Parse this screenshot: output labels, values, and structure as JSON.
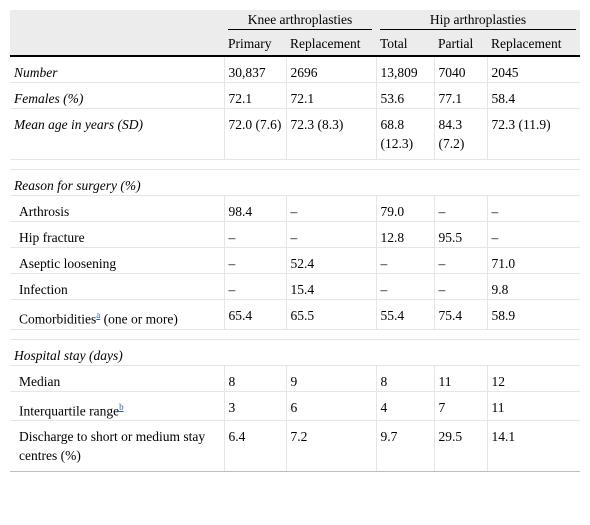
{
  "header": {
    "group_knee": "Knee arthroplasties",
    "group_hip": "Hip arthroplasties",
    "columns": [
      "Primary",
      "Replacement",
      "Total",
      "Partial",
      "Replacement"
    ]
  },
  "rows": [
    {
      "label": "Number",
      "values": [
        "30,837",
        "2696",
        "13,809",
        "7040",
        "2045"
      ]
    },
    {
      "label": "Females (%)",
      "values": [
        "72.1",
        "72.1",
        "53.6",
        "77.1",
        "58.4"
      ]
    },
    {
      "label": "Mean age in years (SD)",
      "values": [
        "72.0 (7.6)",
        "72.3 (8.3)",
        "68.8 (12.3)",
        "84.3 (7.2)",
        "72.3 (11.9)"
      ]
    }
  ],
  "reason_section": {
    "title": "Reason for surgery (%)",
    "rows": [
      {
        "label": "Arthrosis",
        "values": [
          "98.4",
          "–",
          "79.0",
          "–",
          "–"
        ]
      },
      {
        "label": "Hip fracture",
        "values": [
          "–",
          "–",
          "12.8",
          "95.5",
          "–"
        ]
      },
      {
        "label": "Aseptic loosening",
        "values": [
          "–",
          "52.4",
          "–",
          "–",
          "71.0"
        ]
      },
      {
        "label": "Infection",
        "values": [
          "–",
          "15.4",
          "–",
          "–",
          "9.8"
        ]
      },
      {
        "label": "Comorbidities",
        "footnote": "a",
        "label_suffix": " (one or more)",
        "values": [
          "65.4",
          "65.5",
          "55.4",
          "75.4",
          "58.9"
        ]
      }
    ]
  },
  "stay_section": {
    "title": "Hospital stay (days)",
    "rows": [
      {
        "label": "Median",
        "values": [
          "8",
          "9",
          "8",
          "11",
          "12"
        ]
      },
      {
        "label": "Interquartile range",
        "footnote": "b",
        "values": [
          "3",
          "6",
          "4",
          "7",
          "11"
        ]
      },
      {
        "label": "Discharge to short or medium stay centres (%)",
        "values": [
          "6.4",
          "7.2",
          "9.7",
          "29.5",
          "14.1"
        ]
      }
    ]
  }
}
